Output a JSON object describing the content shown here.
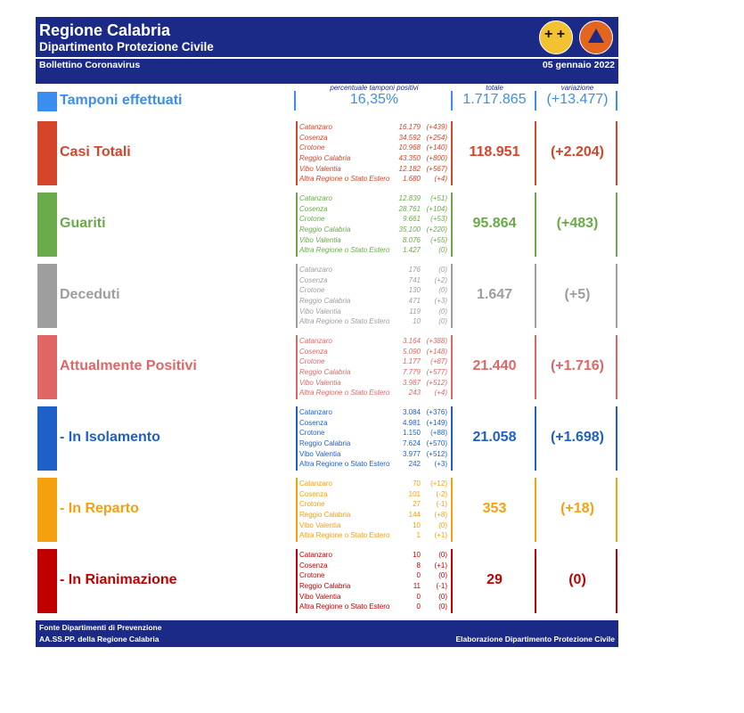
{
  "header": {
    "title": "Regione Calabria",
    "subtitle": "Dipartimento Protezione Civile",
    "bulletin": "Bollettino Coronavirus",
    "date": "05 gennaio 2022"
  },
  "logos": [
    "regione-calabria-emblem-icon",
    "protezione-civile-logo-icon"
  ],
  "tamponi": {
    "label": "Tamponi effettuati",
    "caption_pct": "percentuale tamponi positivi",
    "caption_tot": "totale",
    "caption_var": "variazione",
    "pct": "16,35%",
    "total": "1.717.865",
    "variation": "(+13.477)",
    "color": "#3a8ef0"
  },
  "sections": [
    {
      "label": "Casi Totali",
      "color": "#d4452a",
      "total": "118.951",
      "variation": "(+2.204)",
      "rows": [
        {
          "name": "Catanzaro",
          "value": "16.179",
          "delta": "(+439)"
        },
        {
          "name": "Cosenza",
          "value": "34.592",
          "delta": "(+254)"
        },
        {
          "name": "Crotone",
          "value": "10.968",
          "delta": "(+140)"
        },
        {
          "name": "Reggio Calabria",
          "value": "43.350",
          "delta": "(+800)"
        },
        {
          "name": "Vibo Valentia",
          "value": "12.182",
          "delta": "(+567)"
        },
        {
          "name": "Altra Regione o Stato Estero",
          "value": "1.680",
          "delta": "(+4)"
        }
      ]
    },
    {
      "label": "Guariti",
      "color": "#6aaa4a",
      "total": "95.864",
      "variation": "(+483)",
      "rows": [
        {
          "name": "Catanzaro",
          "value": "12.839",
          "delta": "(+51)"
        },
        {
          "name": "Cosenza",
          "value": "28.761",
          "delta": "(+104)"
        },
        {
          "name": "Crotone",
          "value": "9.661",
          "delta": "(+53)"
        },
        {
          "name": "Reggio Calabria",
          "value": "35.100",
          "delta": "(+220)"
        },
        {
          "name": "Vibo Valentia",
          "value": "8.076",
          "delta": "(+55)"
        },
        {
          "name": "Altra Regione o Stato Estero",
          "value": "1.427",
          "delta": "(0)"
        }
      ]
    },
    {
      "label": "Deceduti",
      "color": "#9e9e9e",
      "total": "1.647",
      "variation": "(+5)",
      "rows": [
        {
          "name": "Catanzaro",
          "value": "176",
          "delta": "(0)"
        },
        {
          "name": "Cosenza",
          "value": "741",
          "delta": "(+2)"
        },
        {
          "name": "Crotone",
          "value": "130",
          "delta": "(0)"
        },
        {
          "name": "Reggio Calabria",
          "value": "471",
          "delta": "(+3)"
        },
        {
          "name": "Vibo Valentia",
          "value": "119",
          "delta": "(0)"
        },
        {
          "name": "Altra Regione o Stato Estero",
          "value": "10",
          "delta": "(0)"
        }
      ]
    },
    {
      "label": "Attualmente Positivi",
      "color": "#e06666",
      "total": "21.440",
      "variation": "(+1.716)",
      "rows": [
        {
          "name": "Catanzaro",
          "value": "3.164",
          "delta": "(+388)"
        },
        {
          "name": "Cosenza",
          "value": "5.090",
          "delta": "(+148)"
        },
        {
          "name": "Crotone",
          "value": "1.177",
          "delta": "(+87)"
        },
        {
          "name": "Reggio Calabria",
          "value": "7.779",
          "delta": "(+577)"
        },
        {
          "name": "Vibo Valentia",
          "value": "3.987",
          "delta": "(+512)"
        },
        {
          "name": "Altra Regione o Stato Estero",
          "value": "243",
          "delta": "(+4)"
        }
      ]
    },
    {
      "label": "- In Isolamento",
      "color": "#1f5fc8",
      "total": "21.058",
      "variation": "(+1.698)",
      "rows": [
        {
          "name": "Catanzaro",
          "value": "3.084",
          "delta": "(+376)"
        },
        {
          "name": "Cosenza",
          "value": "4.981",
          "delta": "(+149)"
        },
        {
          "name": "Crotone",
          "value": "1.150",
          "delta": "(+88)"
        },
        {
          "name": "Reggio Calabria",
          "value": "7.624",
          "delta": "(+570)"
        },
        {
          "name": "Vibo Valentia",
          "value": "3.977",
          "delta": "(+512)"
        },
        {
          "name": "Altra Regione o Stato Estero",
          "value": "242",
          "delta": "(+3)"
        }
      ]
    },
    {
      "label": "- In Reparto",
      "color": "#f5a00f",
      "total": "353",
      "variation": "(+18)",
      "rows": [
        {
          "name": "Catanzaro",
          "value": "70",
          "delta": "(+12)"
        },
        {
          "name": "Cosenza",
          "value": "101",
          "delta": "(-2)"
        },
        {
          "name": "Crotone",
          "value": "27",
          "delta": "(-1)"
        },
        {
          "name": "Reggio Calabria",
          "value": "144",
          "delta": "(+8)"
        },
        {
          "name": "Vibo Valentia",
          "value": "10",
          "delta": "(0)"
        },
        {
          "name": "Altra Regione o Stato Estero",
          "value": "1",
          "delta": "(+1)"
        }
      ]
    },
    {
      "label": "- In Rianimazione",
      "color": "#c00000",
      "total": "29",
      "variation": "(0)",
      "rows": [
        {
          "name": "Catanzaro",
          "value": "10",
          "delta": "(0)"
        },
        {
          "name": "Cosenza",
          "value": "8",
          "delta": "(+1)"
        },
        {
          "name": "Crotone",
          "value": "0",
          "delta": "(0)"
        },
        {
          "name": "Reggio Calabria",
          "value": "11",
          "delta": "(-1)"
        },
        {
          "name": "Vibo Valentia",
          "value": "0",
          "delta": "(0)"
        },
        {
          "name": "Altra Regione o Stato Estero",
          "value": "0",
          "delta": "(0)"
        }
      ]
    }
  ],
  "footer": {
    "source_line1": "Fonte Dipartimenti di Prevenzione",
    "source_line2": "AA.SS.PP.  della Regione Calabria",
    "credit": "Elaborazione Dipartimento Protezione Civile"
  }
}
